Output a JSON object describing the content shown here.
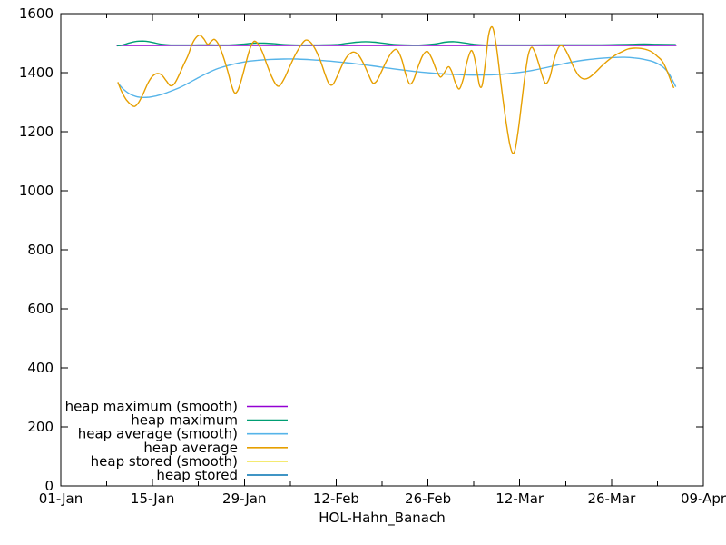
{
  "figure": {
    "background": "#ffffff",
    "text_color": "#000000",
    "border_color": "#000000"
  },
  "chart_data": {
    "type": "line",
    "title": "",
    "xlabel": "HOL-Hahn_Banach",
    "ylabel": "",
    "grid": false,
    "x_unit": "days since 01-Jan",
    "xlim_days": [
      0,
      98
    ],
    "ylim": [
      0,
      1600
    ],
    "y_ticks": [
      0,
      200,
      400,
      600,
      800,
      1000,
      1200,
      1400,
      1600
    ],
    "x_major_ticks": [
      {
        "day": 0,
        "label": "01-Jan"
      },
      {
        "day": 14,
        "label": "15-Jan"
      },
      {
        "day": 28,
        "label": "29-Jan"
      },
      {
        "day": 42,
        "label": "12-Feb"
      },
      {
        "day": 56,
        "label": "26-Feb"
      },
      {
        "day": 70,
        "label": "12-Mar"
      },
      {
        "day": 84,
        "label": "26-Mar"
      },
      {
        "day": 98,
        "label": "09-Apr"
      }
    ],
    "x_minor_tick_days": [
      7,
      21,
      35,
      49,
      63,
      77,
      91
    ],
    "legend": {
      "position": "inside bottom-left",
      "entries": [
        {
          "label": "heap maximum (smooth)",
          "color": "#9400d3"
        },
        {
          "label": "heap maximum",
          "color": "#009e73"
        },
        {
          "label": "heap average (smooth)",
          "color": "#56b4e9"
        },
        {
          "label": "heap average",
          "color": "#e69f00"
        },
        {
          "label": "heap stored (smooth)",
          "color": "#f0e442"
        },
        {
          "label": "heap stored",
          "color": "#0072b2"
        }
      ]
    },
    "series": [
      {
        "name": "heap maximum (smooth)",
        "color": "#9400d3",
        "style": "smooth-flat",
        "points": [
          [
            8.5,
            1492
          ],
          [
            93.9,
            1492
          ]
        ]
      },
      {
        "name": "heap maximum",
        "color": "#009e73",
        "style": "line",
        "points": [
          [
            8.6,
            1491
          ],
          [
            9.5,
            1494
          ],
          [
            10.5,
            1501
          ],
          [
            11.5,
            1506
          ],
          [
            12.5,
            1507
          ],
          [
            13.5,
            1505
          ],
          [
            14.5,
            1500
          ],
          [
            15.5,
            1496
          ],
          [
            16.5,
            1494
          ],
          [
            18,
            1493.5
          ],
          [
            20,
            1493.5
          ],
          [
            22,
            1494
          ],
          [
            24,
            1493.5
          ],
          [
            26,
            1494
          ],
          [
            28,
            1497
          ],
          [
            29.5,
            1500
          ],
          [
            31,
            1500
          ],
          [
            32.5,
            1498
          ],
          [
            34,
            1495
          ],
          [
            36,
            1493.5
          ],
          [
            38,
            1493.5
          ],
          [
            40,
            1494
          ],
          [
            42,
            1495
          ],
          [
            43.5,
            1499
          ],
          [
            45,
            1503
          ],
          [
            46.5,
            1505
          ],
          [
            48,
            1503
          ],
          [
            49.5,
            1499
          ],
          [
            51,
            1495
          ],
          [
            53,
            1493.5
          ],
          [
            55,
            1493.5
          ],
          [
            57,
            1497
          ],
          [
            58.5,
            1503
          ],
          [
            60,
            1505
          ],
          [
            61.5,
            1501
          ],
          [
            63,
            1496
          ],
          [
            64.5,
            1493.5
          ],
          [
            66,
            1493.5
          ],
          [
            70,
            1493.5
          ],
          [
            74,
            1494
          ],
          [
            78,
            1494
          ],
          [
            82,
            1494
          ],
          [
            85,
            1495
          ],
          [
            87,
            1496
          ],
          [
            89,
            1497
          ],
          [
            91,
            1496
          ],
          [
            93.8,
            1495
          ]
        ]
      },
      {
        "name": "heap average (smooth)",
        "color": "#56b4e9",
        "style": "line",
        "points": [
          [
            8.7,
            1365
          ],
          [
            9.5,
            1345
          ],
          [
            10.5,
            1328
          ],
          [
            11.5,
            1319
          ],
          [
            12.5,
            1316
          ],
          [
            13.5,
            1317
          ],
          [
            14.5,
            1321
          ],
          [
            15.5,
            1327
          ],
          [
            16.5,
            1335
          ],
          [
            18,
            1348
          ],
          [
            19.5,
            1365
          ],
          [
            21,
            1383
          ],
          [
            22.5,
            1400
          ],
          [
            24,
            1414
          ],
          [
            25.5,
            1424
          ],
          [
            27,
            1432
          ],
          [
            28.5,
            1438
          ],
          [
            30,
            1442
          ],
          [
            32,
            1445
          ],
          [
            34,
            1446
          ],
          [
            36,
            1446
          ],
          [
            38,
            1444
          ],
          [
            40,
            1441
          ],
          [
            42.5,
            1436
          ],
          [
            45,
            1430
          ],
          [
            47.5,
            1423
          ],
          [
            50,
            1415
          ],
          [
            52.5,
            1408
          ],
          [
            55,
            1402
          ],
          [
            57.5,
            1397
          ],
          [
            60,
            1394
          ],
          [
            62,
            1392
          ],
          [
            64,
            1392
          ],
          [
            66,
            1393
          ],
          [
            68,
            1396
          ],
          [
            70,
            1401
          ],
          [
            72,
            1408
          ],
          [
            74,
            1417
          ],
          [
            76,
            1427
          ],
          [
            78,
            1436
          ],
          [
            80,
            1443
          ],
          [
            82,
            1448
          ],
          [
            84,
            1451
          ],
          [
            86,
            1452
          ],
          [
            87.5,
            1450
          ],
          [
            89,
            1445
          ],
          [
            90.5,
            1436
          ],
          [
            91.8,
            1420
          ],
          [
            92.8,
            1395
          ],
          [
            93.8,
            1352
          ]
        ]
      },
      {
        "name": "heap average",
        "color": "#e69f00",
        "style": "line",
        "points": [
          [
            8.7,
            1368
          ],
          [
            9.3,
            1335
          ],
          [
            10,
            1308
          ],
          [
            10.8,
            1290
          ],
          [
            11.3,
            1286
          ],
          [
            11.9,
            1300
          ],
          [
            12.6,
            1330
          ],
          [
            13.3,
            1365
          ],
          [
            14,
            1388
          ],
          [
            14.7,
            1397
          ],
          [
            15.4,
            1392
          ],
          [
            16.1,
            1372
          ],
          [
            16.7,
            1356
          ],
          [
            17.3,
            1362
          ],
          [
            18,
            1390
          ],
          [
            18.7,
            1425
          ],
          [
            19.4,
            1458
          ],
          [
            20,
            1495
          ],
          [
            20.6,
            1518
          ],
          [
            21.2,
            1527
          ],
          [
            21.8,
            1515
          ],
          [
            22.4,
            1496
          ],
          [
            22.9,
            1505
          ],
          [
            23.4,
            1513
          ],
          [
            24,
            1498
          ],
          [
            24.7,
            1460
          ],
          [
            25.4,
            1410
          ],
          [
            26,
            1360
          ],
          [
            26.5,
            1332
          ],
          [
            27,
            1340
          ],
          [
            27.6,
            1380
          ],
          [
            28.2,
            1430
          ],
          [
            28.8,
            1478
          ],
          [
            29.4,
            1505
          ],
          [
            30,
            1500
          ],
          [
            30.7,
            1472
          ],
          [
            31.4,
            1430
          ],
          [
            32.1,
            1390
          ],
          [
            32.8,
            1360
          ],
          [
            33.4,
            1356
          ],
          [
            34.2,
            1385
          ],
          [
            35,
            1425
          ],
          [
            35.8,
            1462
          ],
          [
            36.6,
            1492
          ],
          [
            37.3,
            1510
          ],
          [
            38,
            1505
          ],
          [
            38.8,
            1480
          ],
          [
            39.6,
            1440
          ],
          [
            40.3,
            1395
          ],
          [
            40.9,
            1363
          ],
          [
            41.5,
            1360
          ],
          [
            42.2,
            1390
          ],
          [
            43,
            1430
          ],
          [
            43.8,
            1458
          ],
          [
            44.6,
            1470
          ],
          [
            45.4,
            1460
          ],
          [
            46.2,
            1430
          ],
          [
            47,
            1390
          ],
          [
            47.6,
            1365
          ],
          [
            48.2,
            1372
          ],
          [
            49,
            1408
          ],
          [
            49.8,
            1445
          ],
          [
            50.6,
            1472
          ],
          [
            51.3,
            1477
          ],
          [
            52,
            1445
          ],
          [
            52.6,
            1395
          ],
          [
            53.2,
            1362
          ],
          [
            53.8,
            1375
          ],
          [
            54.5,
            1420
          ],
          [
            55.2,
            1458
          ],
          [
            55.9,
            1472
          ],
          [
            56.6,
            1448
          ],
          [
            57.3,
            1408
          ],
          [
            57.9,
            1385
          ],
          [
            58.5,
            1400
          ],
          [
            59.1,
            1420
          ],
          [
            59.6,
            1405
          ],
          [
            60.2,
            1365
          ],
          [
            60.8,
            1345
          ],
          [
            61.4,
            1380
          ],
          [
            62,
            1440
          ],
          [
            62.6,
            1475
          ],
          [
            63.1,
            1450
          ],
          [
            63.5,
            1400
          ],
          [
            63.9,
            1355
          ],
          [
            64.3,
            1360
          ],
          [
            64.8,
            1440
          ],
          [
            65.2,
            1520
          ],
          [
            65.6,
            1553
          ],
          [
            66,
            1545
          ],
          [
            66.5,
            1480
          ],
          [
            67,
            1390
          ],
          [
            67.5,
            1300
          ],
          [
            68,
            1220
          ],
          [
            68.5,
            1155
          ],
          [
            68.9,
            1128
          ],
          [
            69.3,
            1140
          ],
          [
            69.8,
            1210
          ],
          [
            70.3,
            1300
          ],
          [
            70.8,
            1390
          ],
          [
            71.3,
            1460
          ],
          [
            71.8,
            1486
          ],
          [
            72.3,
            1470
          ],
          [
            72.9,
            1430
          ],
          [
            73.5,
            1385
          ],
          [
            74,
            1363
          ],
          [
            74.6,
            1385
          ],
          [
            75.2,
            1440
          ],
          [
            75.8,
            1480
          ],
          [
            76.3,
            1492
          ],
          [
            76.9,
            1480
          ],
          [
            77.6,
            1450
          ],
          [
            78.3,
            1415
          ],
          [
            79,
            1390
          ],
          [
            79.7,
            1379
          ],
          [
            80.5,
            1382
          ],
          [
            81.5,
            1400
          ],
          [
            82.5,
            1422
          ],
          [
            83.5,
            1442
          ],
          [
            84.5,
            1458
          ],
          [
            85.5,
            1470
          ],
          [
            86.5,
            1480
          ],
          [
            87.5,
            1483
          ],
          [
            88.5,
            1482
          ],
          [
            89.5,
            1477
          ],
          [
            90.3,
            1468
          ],
          [
            91,
            1455
          ],
          [
            91.7,
            1440
          ],
          [
            92.4,
            1410
          ],
          [
            93,
            1375
          ],
          [
            93.5,
            1348
          ]
        ]
      },
      {
        "name": "heap stored (smooth)",
        "color": "#f0e442",
        "style": "line",
        "points": [],
        "note": "legend entry only; no visible curve in plot area"
      },
      {
        "name": "heap stored",
        "color": "#0072b2",
        "style": "line",
        "points": [],
        "note": "legend entry only; no visible curve in plot area"
      }
    ]
  }
}
